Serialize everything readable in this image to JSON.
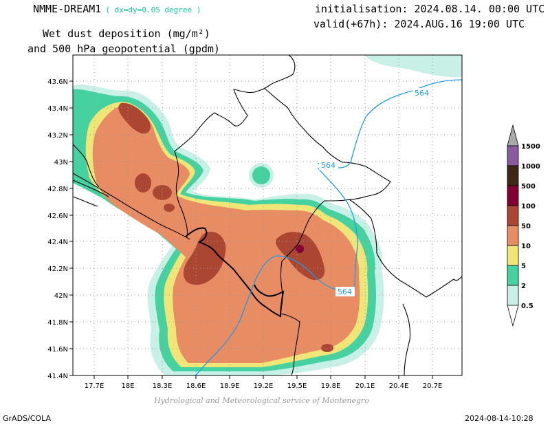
{
  "header": {
    "model": "NMME-DREAM1",
    "resolution": "( dx=dy=0.05 degree )",
    "variable_line1": "Wet dust deposition (mg/m²)",
    "variable_line2": "and 500 hPa geopotential (gpdm)",
    "initialisation": "initialisation: 2024.08.14. 00:00 UTC",
    "valid": "valid(+67h): 2024.AUG.16 19:00 UTC"
  },
  "axes": {
    "y_labels": [
      "43.6N",
      "43.4N",
      "43.2N",
      "43N",
      "42.8N",
      "42.6N",
      "42.4N",
      "42.2N",
      "42N",
      "41.8N",
      "41.6N",
      "41.4N"
    ],
    "x_labels": [
      "17.7E",
      "18E",
      "18.3E",
      "18.6E",
      "18.9E",
      "19.2E",
      "19.5E",
      "19.8E",
      "20.1E",
      "20.4E",
      "20.7E"
    ]
  },
  "contour_labels": [
    "564",
    "564",
    "564"
  ],
  "legend": {
    "levels": [
      "1500",
      "1000",
      "500",
      "100",
      "50",
      "10",
      "5",
      "2",
      "0.5"
    ],
    "colors": [
      "#8a5aa0",
      "#3c2814",
      "#820032",
      "#aa4632",
      "#e88c64",
      "#f0e678",
      "#46d2a0",
      "#c8f0e6"
    ]
  },
  "footer": {
    "source": "Hydrological and Meteorological service of Montenegro",
    "left": "GrADS/COLA",
    "right": "2024-08-14-10:28"
  }
}
